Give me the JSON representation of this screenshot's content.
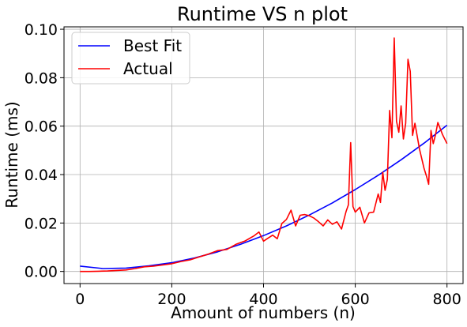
{
  "chart_data": {
    "type": "line",
    "title": "Runtime VS n plot",
    "xlabel": "Amount of numbers (n)",
    "ylabel": "Runtime (ms)",
    "xlim": [
      -35,
      835
    ],
    "ylim": [
      -0.005,
      0.101
    ],
    "xticks": [
      0,
      200,
      400,
      600,
      800
    ],
    "xtick_labels": [
      "0",
      "200",
      "400",
      "600",
      "800"
    ],
    "yticks": [
      0.0,
      0.02,
      0.04,
      0.06,
      0.08,
      0.1
    ],
    "ytick_labels": [
      "0.00",
      "0.02",
      "0.04",
      "0.06",
      "0.08",
      "0.10"
    ],
    "grid": true,
    "legend_position": "top-left",
    "series": [
      {
        "name": "Best Fit",
        "color": "#0000ff",
        "x": [
          0,
          50,
          100,
          150,
          200,
          250,
          300,
          350,
          400,
          450,
          500,
          550,
          600,
          650,
          700,
          750,
          800
        ],
        "y": [
          0.0022,
          0.0012,
          0.0014,
          0.0023,
          0.0036,
          0.0056,
          0.0081,
          0.0112,
          0.0148,
          0.0188,
          0.0233,
          0.0283,
          0.0338,
          0.0397,
          0.0461,
          0.053,
          0.0604
        ]
      },
      {
        "name": "Actual",
        "color": "#ff0000",
        "x": [
          0,
          20,
          40,
          60,
          80,
          100,
          120,
          140,
          160,
          180,
          200,
          220,
          240,
          260,
          280,
          300,
          320,
          340,
          360,
          380,
          390,
          400,
          410,
          420,
          430,
          440,
          450,
          460,
          470,
          480,
          490,
          500,
          510,
          520,
          530,
          540,
          550,
          560,
          570,
          580,
          585,
          590,
          595,
          600,
          610,
          620,
          630,
          640,
          650,
          655,
          660,
          665,
          670,
          675,
          680,
          685,
          690,
          695,
          700,
          705,
          710,
          715,
          720,
          725,
          730,
          740,
          750,
          755,
          760,
          765,
          770,
          775,
          780,
          790,
          800
        ],
        "y": [
          0.0,
          0.0,
          0.0001,
          0.0002,
          0.0004,
          0.0006,
          0.0012,
          0.0019,
          0.0022,
          0.0027,
          0.0032,
          0.0041,
          0.0048,
          0.006,
          0.0072,
          0.0086,
          0.0091,
          0.0112,
          0.0126,
          0.0148,
          0.0163,
          0.0125,
          0.0138,
          0.015,
          0.0135,
          0.0198,
          0.0215,
          0.0253,
          0.0188,
          0.0232,
          0.0235,
          0.023,
          0.022,
          0.0205,
          0.0188,
          0.0213,
          0.0195,
          0.0205,
          0.0175,
          0.0248,
          0.0275,
          0.0532,
          0.0268,
          0.0245,
          0.0265,
          0.02,
          0.0242,
          0.0245,
          0.032,
          0.0285,
          0.041,
          0.0335,
          0.038,
          0.0665,
          0.0552,
          0.0964,
          0.062,
          0.0575,
          0.0684,
          0.0547,
          0.0612,
          0.0876,
          0.0826,
          0.0562,
          0.0612,
          0.0505,
          0.0425,
          0.0395,
          0.036,
          0.0582,
          0.0528,
          0.0565,
          0.0615,
          0.0566,
          0.0528
        ]
      }
    ]
  }
}
